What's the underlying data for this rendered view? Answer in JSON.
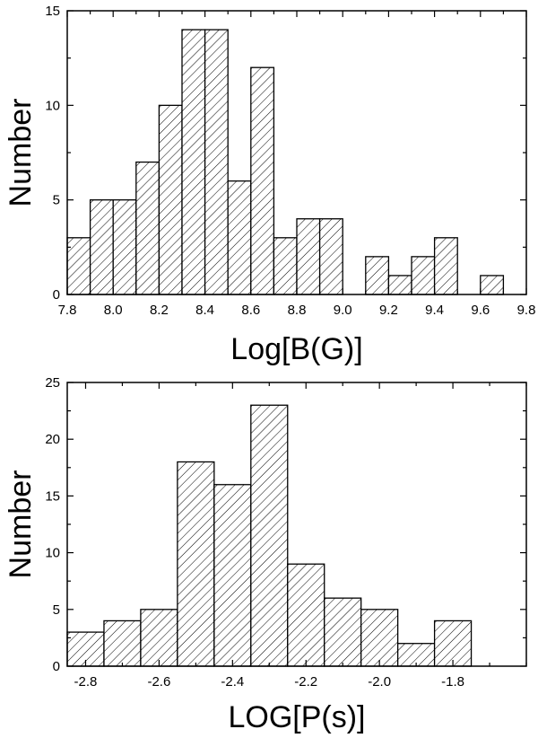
{
  "chart_data": [
    {
      "type": "bar",
      "xlabel": "Log[B(G)]",
      "ylabel": "Number",
      "xlim": [
        7.8,
        9.8
      ],
      "ylim": [
        0,
        15
      ],
      "x_ticks": [
        "7.8",
        "8.0",
        "8.2",
        "8.4",
        "8.6",
        "8.8",
        "9.0",
        "9.2",
        "9.4",
        "9.6",
        "9.8"
      ],
      "y_ticks": [
        "0",
        "5",
        "10",
        "15"
      ],
      "bin_width": 0.1,
      "bins": [
        {
          "start": 7.8,
          "value": 3
        },
        {
          "start": 7.9,
          "value": 5
        },
        {
          "start": 8.0,
          "value": 5
        },
        {
          "start": 8.1,
          "value": 7
        },
        {
          "start": 8.2,
          "value": 10
        },
        {
          "start": 8.3,
          "value": 14
        },
        {
          "start": 8.4,
          "value": 14
        },
        {
          "start": 8.5,
          "value": 6
        },
        {
          "start": 8.6,
          "value": 12
        },
        {
          "start": 8.7,
          "value": 3
        },
        {
          "start": 8.8,
          "value": 4
        },
        {
          "start": 8.9,
          "value": 4
        },
        {
          "start": 9.1,
          "value": 2
        },
        {
          "start": 9.2,
          "value": 1
        },
        {
          "start": 9.3,
          "value": 2
        },
        {
          "start": 9.4,
          "value": 3
        },
        {
          "start": 9.6,
          "value": 1
        }
      ]
    },
    {
      "type": "bar",
      "xlabel": "LOG[P(s)]",
      "ylabel": "Number",
      "xlim": [
        -2.85,
        -1.6
      ],
      "ylim": [
        0,
        25
      ],
      "x_ticks": [
        "-2.8",
        "-2.6",
        "-2.4",
        "-2.2",
        "-2.0",
        "-1.8"
      ],
      "y_ticks": [
        "0",
        "5",
        "10",
        "15",
        "20",
        "25"
      ],
      "bin_width": 0.1,
      "bins": [
        {
          "start": -2.85,
          "value": 3
        },
        {
          "start": -2.75,
          "value": 4
        },
        {
          "start": -2.65,
          "value": 5
        },
        {
          "start": -2.55,
          "value": 18
        },
        {
          "start": -2.45,
          "value": 16
        },
        {
          "start": -2.35,
          "value": 23
        },
        {
          "start": -2.25,
          "value": 9
        },
        {
          "start": -2.15,
          "value": 6
        },
        {
          "start": -2.05,
          "value": 5
        },
        {
          "start": -1.95,
          "value": 2
        },
        {
          "start": -1.85,
          "value": 4
        }
      ]
    }
  ]
}
